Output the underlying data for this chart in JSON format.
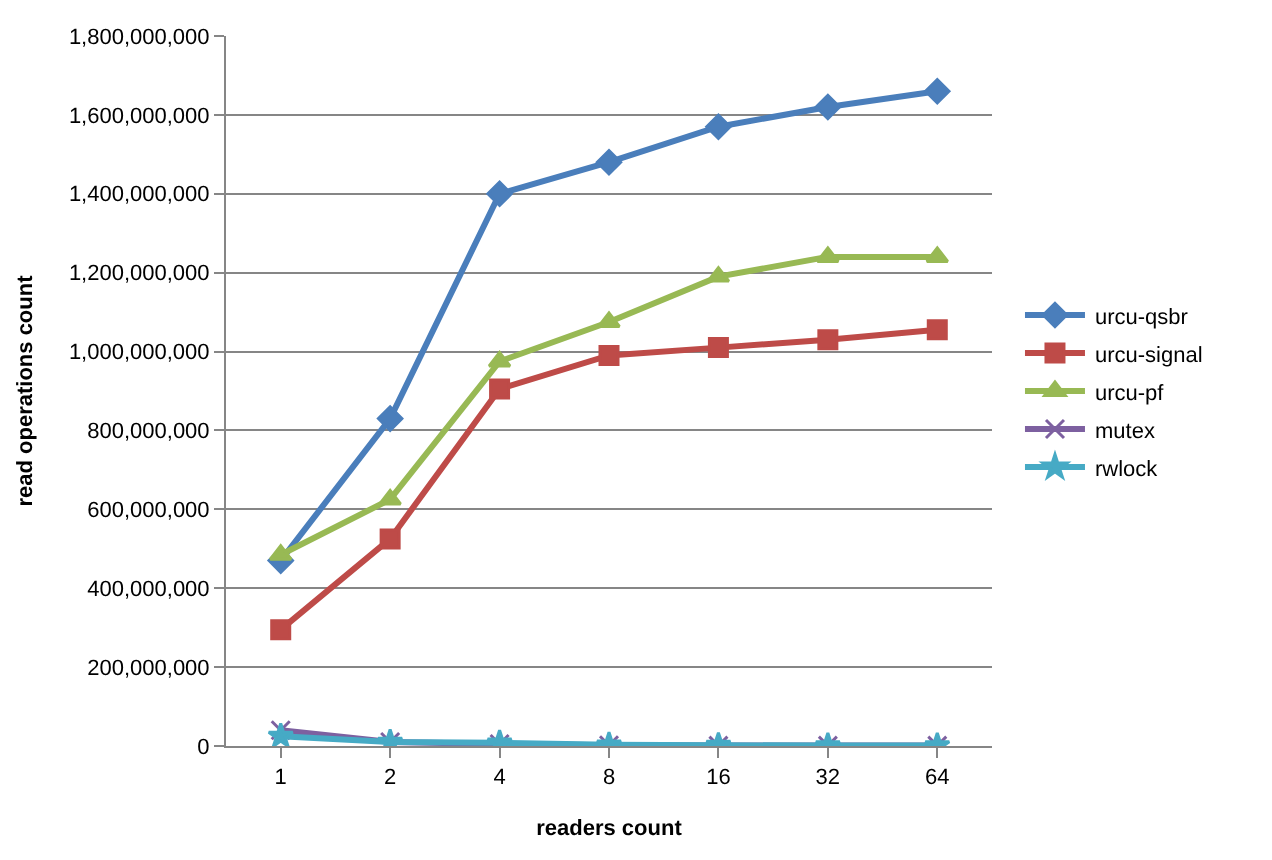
{
  "chart_data": {
    "type": "line",
    "xlabel": "readers count",
    "ylabel": "read operations count",
    "categories": [
      "1",
      "2",
      "4",
      "8",
      "16",
      "32",
      "64"
    ],
    "ylim": [
      0,
      1800000000
    ],
    "yticks": [
      {
        "value": 0,
        "label": "0"
      },
      {
        "value": 200000000,
        "label": "200,000,000"
      },
      {
        "value": 400000000,
        "label": "400,000,000"
      },
      {
        "value": 600000000,
        "label": "600,000,000"
      },
      {
        "value": 800000000,
        "label": "800,000,000"
      },
      {
        "value": 1000000000,
        "label": "1,000,000,000"
      },
      {
        "value": 1200000000,
        "label": "1,200,000,000"
      },
      {
        "value": 1400000000,
        "label": "1,400,000,000"
      },
      {
        "value": 1600000000,
        "label": "1,600,000,000"
      },
      {
        "value": 1800000000,
        "label": "1,800,000,000"
      }
    ],
    "grid": "y",
    "legend": "right",
    "line_style": "solid",
    "series": [
      {
        "name": "urcu-qsbr",
        "color": "#4a7ebb",
        "marker": "diamond",
        "values": [
          470000000,
          830000000,
          1400000000,
          1480000000,
          1570000000,
          1620000000,
          1660000000
        ]
      },
      {
        "name": "urcu-signal",
        "color": "#be4b48",
        "marker": "square",
        "values": [
          295000000,
          525000000,
          905000000,
          990000000,
          1010000000,
          1030000000,
          1055000000
        ]
      },
      {
        "name": "urcu-pf",
        "color": "#98b954",
        "marker": "triangle",
        "values": [
          485000000,
          625000000,
          975000000,
          1075000000,
          1190000000,
          1240000000,
          1240000000
        ]
      },
      {
        "name": "mutex",
        "color": "#7d60a0",
        "marker": "cross",
        "values": [
          40000000,
          10000000,
          5000000,
          2000000,
          1000000,
          1000000,
          1000000
        ]
      },
      {
        "name": "rwlock",
        "color": "#46aac5",
        "marker": "star",
        "values": [
          25000000,
          10000000,
          8000000,
          3000000,
          2000000,
          1000000,
          1000000
        ]
      }
    ]
  }
}
